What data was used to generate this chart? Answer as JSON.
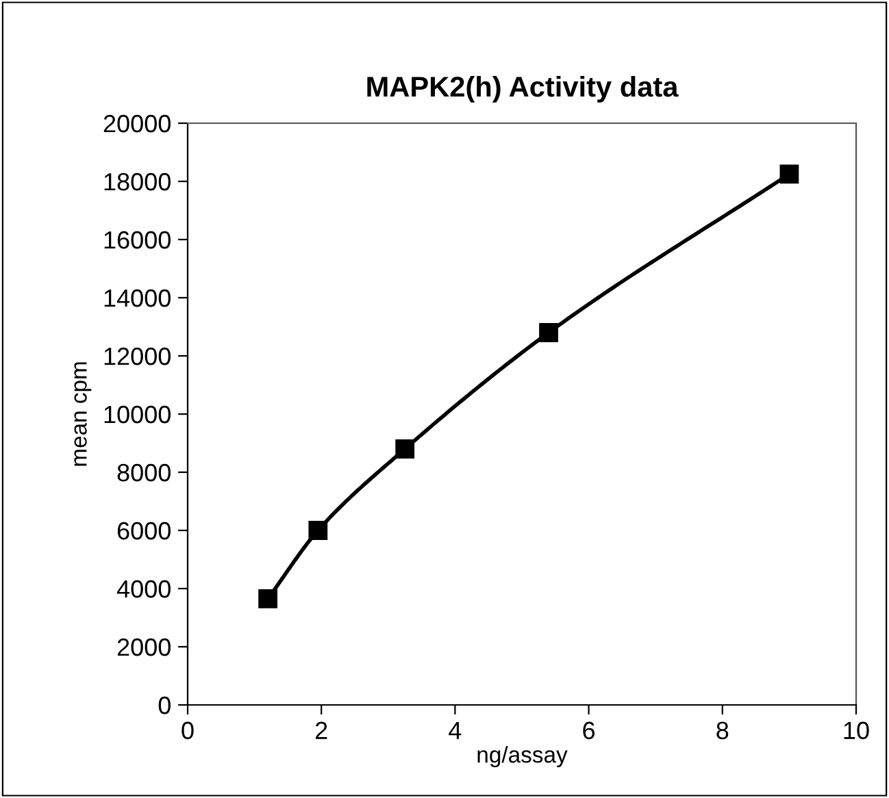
{
  "chart_data": {
    "type": "line",
    "title": "MAPK2(h) Activity data",
    "xlabel": "ng/assay",
    "ylabel": "mean cpm",
    "x": [
      1.2,
      1.95,
      3.25,
      5.4,
      9.0
    ],
    "series": [
      {
        "color": "#000000",
        "values": [
          3650,
          6000,
          8800,
          12800,
          18250
        ]
      }
    ],
    "xlim": [
      0,
      10
    ],
    "xticks": [
      0,
      2,
      4,
      6,
      8,
      10
    ],
    "ylim": [
      0,
      20000
    ],
    "yticks": [
      0,
      2000,
      4000,
      6000,
      8000,
      10000,
      12000,
      14000,
      16000,
      18000,
      20000
    ],
    "marker": "square",
    "line_style": "solid"
  }
}
